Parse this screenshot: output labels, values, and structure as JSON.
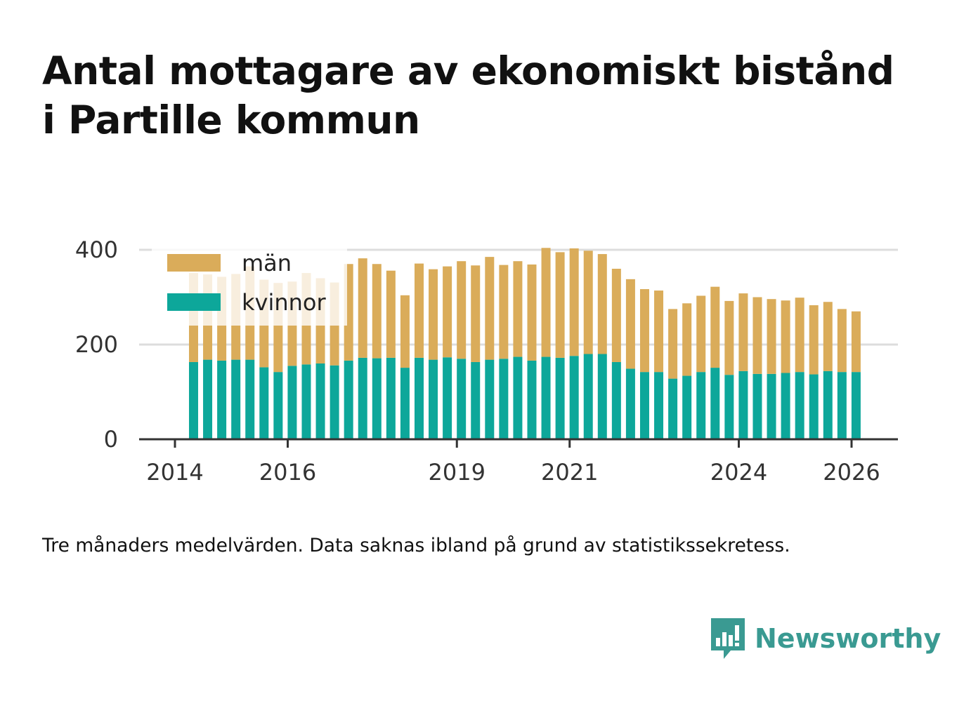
{
  "title": {
    "line1": "Antal mottagare av ekonomiskt bistånd",
    "line2": "i Partille kommun"
  },
  "note": "Tre månaders medelvärden. Data saknas ibland på grund av statistikssekretess.",
  "brand": {
    "name": "Newsworthy",
    "icon": "newsworthy-logo-icon"
  },
  "colors": {
    "men": "#daac5a",
    "women": "#0da79a",
    "grid": "#dddddd",
    "axis": "#333333"
  },
  "chart_data": {
    "type": "bar",
    "stacked": true,
    "title": "Antal mottagare av ekonomiskt bistånd i Partille kommun",
    "xlabel": "",
    "ylabel": "",
    "ylim": [
      0,
      400
    ],
    "yticks": [
      0,
      200,
      400
    ],
    "xlim": [
      2014.0,
      2026.25
    ],
    "xticks": [
      {
        "value": 2014,
        "label": "2014"
      },
      {
        "value": 2016,
        "label": "2016"
      },
      {
        "value": 2019,
        "label": "2019"
      },
      {
        "value": 2021,
        "label": "2021"
      },
      {
        "value": 2024,
        "label": "2024"
      },
      {
        "value": 2026,
        "label": "2026"
      }
    ],
    "legend": {
      "position": "top-left",
      "items": [
        "män",
        "kvinnor"
      ]
    },
    "x": [
      2014.33,
      2014.58,
      2014.83,
      2015.08,
      2015.33,
      2015.58,
      2015.83,
      2016.08,
      2016.33,
      2016.58,
      2016.83,
      2017.08,
      2017.33,
      2017.58,
      2017.83,
      2018.08,
      2018.33,
      2018.58,
      2018.83,
      2019.08,
      2019.33,
      2019.58,
      2019.83,
      2020.08,
      2020.33,
      2020.58,
      2020.83,
      2021.08,
      2021.33,
      2021.58,
      2021.83,
      2022.08,
      2022.33,
      2022.58,
      2022.83,
      2023.08,
      2023.33,
      2023.58,
      2023.83,
      2024.08,
      2024.33,
      2024.58,
      2024.83,
      2025.08,
      2025.33,
      2025.58,
      2025.83,
      2026.08
    ],
    "series": [
      {
        "name": "kvinnor",
        "values": [
          163,
          168,
          166,
          168,
          168,
          152,
          142,
          155,
          158,
          160,
          156,
          166,
          172,
          171,
          172,
          151,
          172,
          168,
          173,
          170,
          163,
          168,
          170,
          174,
          166,
          174,
          172,
          176,
          180,
          180,
          163,
          149,
          142,
          142,
          128,
          134,
          142,
          151,
          136,
          144,
          138,
          138,
          140,
          142,
          137,
          144,
          142,
          142
        ]
      },
      {
        "name": "män",
        "values": [
          188,
          180,
          177,
          181,
          197,
          185,
          188,
          178,
          193,
          180,
          175,
          204,
          210,
          199,
          184,
          153,
          199,
          191,
          192,
          206,
          204,
          217,
          198,
          202,
          203,
          230,
          223,
          227,
          218,
          211,
          197,
          189,
          175,
          172,
          147,
          153,
          161,
          171,
          156,
          164,
          162,
          158,
          153,
          157,
          146,
          146,
          133,
          128
        ]
      }
    ]
  }
}
